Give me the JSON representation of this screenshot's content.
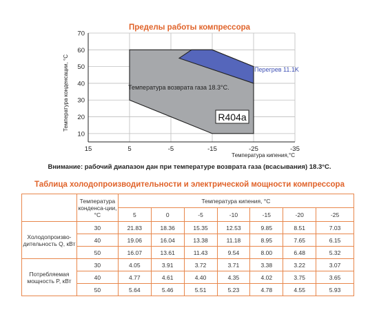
{
  "chart_title": "Пределы работы компрессора",
  "chart_note": "Внимание: рабочий диапазон дан при температуре возврата газа (всасывания) 18.3°С.",
  "chart_data": {
    "type": "area",
    "xlabel": "Температура кипения,°С",
    "ylabel": "Температура конденсации, °С",
    "x_ticks": [
      15,
      5,
      -5,
      -15,
      -25,
      -35
    ],
    "y_ticks": [
      10,
      20,
      30,
      40,
      50,
      60,
      70
    ],
    "xlim": [
      15,
      -35
    ],
    "ylim": [
      5,
      70
    ],
    "x_axis_reversed": true,
    "series": [
      {
        "name": "Температура возврата газа 18.3°С.",
        "color": "#a6a8ab",
        "polygon": [
          [
            5,
            30
          ],
          [
            5,
            60
          ],
          [
            -15,
            60
          ],
          [
            -25,
            50
          ],
          [
            -25,
            20
          ],
          [
            -25,
            10
          ],
          [
            -15,
            10
          ]
        ]
      },
      {
        "name": "Перегрев 11.1K",
        "color": "#5566bb",
        "polygon": [
          [
            -7,
            55
          ],
          [
            -10,
            60
          ],
          [
            -15,
            60
          ],
          [
            -25,
            50
          ],
          [
            -25,
            40
          ]
        ]
      }
    ],
    "refrigerant_label": "R404a"
  },
  "table": {
    "title": "Таблица холодопроизводительности и электрической мощности компрессора",
    "cond_header": "Температура конденса-ции, °С",
    "evap_header": "Температура кипения, °С",
    "evap_temps": [
      "5",
      "0",
      "-5",
      "-10",
      "-15",
      "-20",
      "-25"
    ],
    "groups": [
      {
        "label": "Холодопроизво-дительность Q, кВт",
        "rows": [
          {
            "cond": "30",
            "values": [
              "21.83",
              "18.36",
              "15.35",
              "12.53",
              "9.85",
              "8.51",
              "7.03"
            ]
          },
          {
            "cond": "40",
            "values": [
              "19.06",
              "16.04",
              "13.38",
              "11.18",
              "8.95",
              "7.65",
              "6.15"
            ]
          },
          {
            "cond": "50",
            "values": [
              "16.07",
              "13.61",
              "11.43",
              "9.54",
              "8.00",
              "6.48",
              "5.32"
            ]
          }
        ]
      },
      {
        "label": "Потребляемая мощность P, кВт",
        "rows": [
          {
            "cond": "30",
            "values": [
              "4.05",
              "3.91",
              "3.72",
              "3.71",
              "3.38",
              "3.22",
              "3.07"
            ]
          },
          {
            "cond": "40",
            "values": [
              "4.77",
              "4.61",
              "4.40",
              "4.35",
              "4.02",
              "3.75",
              "3.65"
            ]
          },
          {
            "cond": "50",
            "values": [
              "5.64",
              "5.46",
              "5.51",
              "5.23",
              "4.78",
              "4.55",
              "5.93"
            ]
          }
        ]
      }
    ]
  }
}
